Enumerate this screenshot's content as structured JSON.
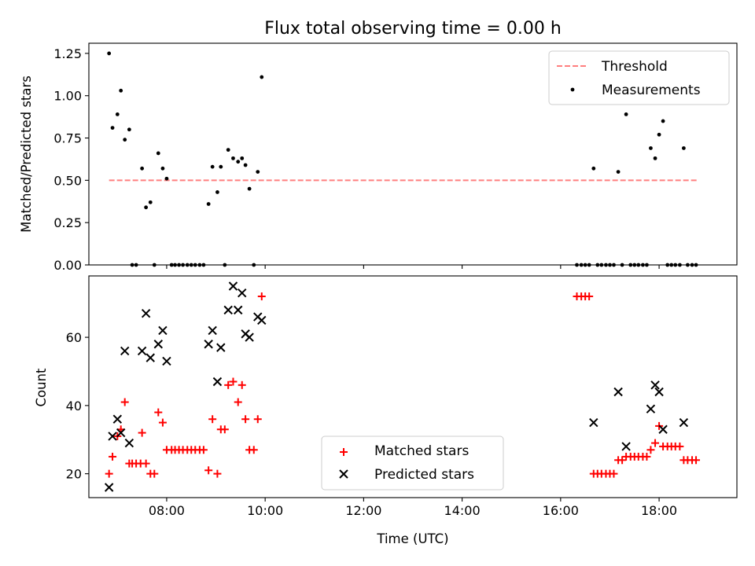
{
  "chart_data": [
    {
      "type": "scatter",
      "panel": "top",
      "title": "Flux total observing time = 0.00 h",
      "xlabel": "",
      "ylabel": "Matched/Predicted stars",
      "xlim": [
        6.42,
        19.58
      ],
      "ylim": [
        0,
        1.31
      ],
      "x_ticks": [
        8,
        10,
        12,
        14,
        16,
        18
      ],
      "x_tick_labels": [
        "",
        "",
        "",
        "",
        "",
        ""
      ],
      "y_ticks": [
        0,
        0.25,
        0.5,
        0.75,
        1.0,
        1.25
      ],
      "y_tick_labels": [
        "0.00",
        "0.25",
        "0.50",
        "0.75",
        "1.00",
        "1.25"
      ],
      "legend": {
        "position": "top-right",
        "entries": [
          "Threshold",
          "Measurements"
        ]
      },
      "threshold": {
        "name": "Threshold",
        "y": 0.5,
        "x_range": [
          6.83,
          18.78
        ],
        "color": "#ff7f7f",
        "style": "dashed"
      },
      "series": [
        {
          "name": "Measurements",
          "marker": "dot",
          "color": "#000000",
          "points": [
            [
              6.83,
              1.25
            ],
            [
              6.9,
              0.81
            ],
            [
              7.0,
              0.89
            ],
            [
              7.07,
              1.03
            ],
            [
              7.15,
              0.74
            ],
            [
              7.24,
              0.8
            ],
            [
              7.3,
              0.0
            ],
            [
              7.38,
              0.0
            ],
            [
              7.5,
              0.57
            ],
            [
              7.58,
              0.34
            ],
            [
              7.67,
              0.37
            ],
            [
              7.75,
              0.0
            ],
            [
              7.83,
              0.66
            ],
            [
              7.92,
              0.57
            ],
            [
              8.0,
              0.51
            ],
            [
              8.1,
              0.0
            ],
            [
              8.17,
              0.0
            ],
            [
              8.25,
              0.0
            ],
            [
              8.33,
              0.0
            ],
            [
              8.42,
              0.0
            ],
            [
              8.5,
              0.0
            ],
            [
              8.58,
              0.0
            ],
            [
              8.67,
              0.0
            ],
            [
              8.75,
              0.0
            ],
            [
              8.85,
              0.36
            ],
            [
              8.93,
              0.58
            ],
            [
              9.03,
              0.43
            ],
            [
              9.1,
              0.58
            ],
            [
              9.18,
              0.0
            ],
            [
              9.25,
              0.68
            ],
            [
              9.35,
              0.63
            ],
            [
              9.45,
              0.61
            ],
            [
              9.53,
              0.63
            ],
            [
              9.6,
              0.59
            ],
            [
              9.68,
              0.45
            ],
            [
              9.77,
              0.0
            ],
            [
              9.85,
              0.55
            ],
            [
              9.93,
              1.11
            ],
            [
              16.33,
              0.0
            ],
            [
              16.42,
              0.0
            ],
            [
              16.5,
              0.0
            ],
            [
              16.58,
              0.0
            ],
            [
              16.67,
              0.57
            ],
            [
              16.75,
              0.0
            ],
            [
              16.83,
              0.0
            ],
            [
              16.92,
              0.0
            ],
            [
              17.0,
              0.0
            ],
            [
              17.08,
              0.0
            ],
            [
              17.17,
              0.55
            ],
            [
              17.25,
              0.0
            ],
            [
              17.33,
              0.89
            ],
            [
              17.42,
              0.0
            ],
            [
              17.5,
              0.0
            ],
            [
              17.58,
              0.0
            ],
            [
              17.67,
              0.0
            ],
            [
              17.75,
              0.0
            ],
            [
              17.83,
              0.69
            ],
            [
              17.92,
              0.63
            ],
            [
              18.0,
              0.77
            ],
            [
              18.08,
              0.85
            ],
            [
              18.17,
              0.0
            ],
            [
              18.25,
              0.0
            ],
            [
              18.33,
              0.0
            ],
            [
              18.42,
              0.0
            ],
            [
              18.5,
              0.69
            ],
            [
              18.58,
              0.0
            ],
            [
              18.67,
              0.0
            ],
            [
              18.75,
              0.0
            ]
          ]
        }
      ]
    },
    {
      "type": "scatter",
      "panel": "bottom",
      "title": "",
      "xlabel": "Time (UTC)",
      "ylabel": "Count",
      "xlim": [
        6.42,
        19.58
      ],
      "ylim": [
        13,
        78
      ],
      "x_ticks": [
        8,
        10,
        12,
        14,
        16,
        18
      ],
      "x_tick_labels": [
        "08:00",
        "10:00",
        "12:00",
        "14:00",
        "16:00",
        "18:00"
      ],
      "y_ticks": [
        20,
        40,
        60
      ],
      "y_tick_labels": [
        "20",
        "40",
        "60"
      ],
      "legend": {
        "position": "lower-center",
        "entries": [
          "Matched stars",
          "Predicted stars"
        ]
      },
      "series": [
        {
          "name": "Matched stars",
          "marker": "plus",
          "color": "#ff0000",
          "points": [
            [
              6.83,
              20
            ],
            [
              6.9,
              25
            ],
            [
              7.0,
              31
            ],
            [
              7.07,
              33
            ],
            [
              7.15,
              41
            ],
            [
              7.24,
              23
            ],
            [
              7.3,
              23
            ],
            [
              7.38,
              23
            ],
            [
              7.47,
              23
            ],
            [
              7.5,
              32
            ],
            [
              7.58,
              23
            ],
            [
              7.67,
              20
            ],
            [
              7.75,
              20
            ],
            [
              7.83,
              38
            ],
            [
              7.92,
              35
            ],
            [
              8.0,
              27
            ],
            [
              8.1,
              27
            ],
            [
              8.17,
              27
            ],
            [
              8.25,
              27
            ],
            [
              8.33,
              27
            ],
            [
              8.42,
              27
            ],
            [
              8.5,
              27
            ],
            [
              8.58,
              27
            ],
            [
              8.67,
              27
            ],
            [
              8.75,
              27
            ],
            [
              8.85,
              21
            ],
            [
              8.93,
              36
            ],
            [
              9.03,
              20
            ],
            [
              9.1,
              33
            ],
            [
              9.18,
              33
            ],
            [
              9.25,
              46
            ],
            [
              9.35,
              47
            ],
            [
              9.45,
              41
            ],
            [
              9.53,
              46
            ],
            [
              9.6,
              36
            ],
            [
              9.68,
              27
            ],
            [
              9.77,
              27
            ],
            [
              9.85,
              36
            ],
            [
              9.93,
              72
            ],
            [
              16.33,
              72
            ],
            [
              16.42,
              72
            ],
            [
              16.5,
              72
            ],
            [
              16.58,
              72
            ],
            [
              16.67,
              20
            ],
            [
              16.75,
              20
            ],
            [
              16.83,
              20
            ],
            [
              16.92,
              20
            ],
            [
              17.0,
              20
            ],
            [
              17.08,
              20
            ],
            [
              17.17,
              24
            ],
            [
              17.25,
              24
            ],
            [
              17.33,
              25
            ],
            [
              17.42,
              25
            ],
            [
              17.5,
              25
            ],
            [
              17.58,
              25
            ],
            [
              17.67,
              25
            ],
            [
              17.75,
              25
            ],
            [
              17.83,
              27
            ],
            [
              17.92,
              29
            ],
            [
              18.0,
              34
            ],
            [
              18.08,
              28
            ],
            [
              18.17,
              28
            ],
            [
              18.25,
              28
            ],
            [
              18.33,
              28
            ],
            [
              18.42,
              28
            ],
            [
              18.5,
              24
            ],
            [
              18.58,
              24
            ],
            [
              18.67,
              24
            ],
            [
              18.75,
              24
            ]
          ]
        },
        {
          "name": "Predicted stars",
          "marker": "x",
          "color": "#000000",
          "points": [
            [
              6.83,
              16
            ],
            [
              6.9,
              31
            ],
            [
              7.0,
              36
            ],
            [
              7.07,
              32
            ],
            [
              7.15,
              56
            ],
            [
              7.24,
              29
            ],
            [
              7.5,
              56
            ],
            [
              7.58,
              67
            ],
            [
              7.67,
              54
            ],
            [
              7.83,
              58
            ],
            [
              7.92,
              62
            ],
            [
              8.0,
              53
            ],
            [
              8.85,
              58
            ],
            [
              8.93,
              62
            ],
            [
              9.03,
              47
            ],
            [
              9.1,
              57
            ],
            [
              9.25,
              68
            ],
            [
              9.35,
              75
            ],
            [
              9.45,
              68
            ],
            [
              9.53,
              73
            ],
            [
              9.6,
              61
            ],
            [
              9.68,
              60
            ],
            [
              9.85,
              66
            ],
            [
              9.93,
              65
            ],
            [
              16.67,
              35
            ],
            [
              17.17,
              44
            ],
            [
              17.33,
              28
            ],
            [
              17.83,
              39
            ],
            [
              17.92,
              46
            ],
            [
              18.0,
              44
            ],
            [
              18.08,
              33
            ],
            [
              18.5,
              35
            ]
          ]
        }
      ]
    }
  ]
}
